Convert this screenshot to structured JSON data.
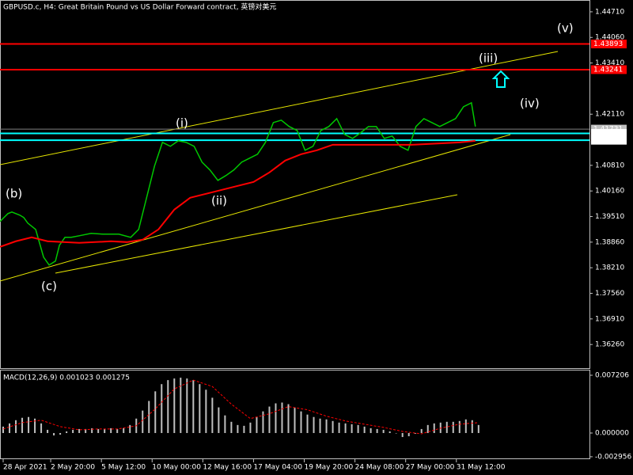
{
  "chart_data": [
    {
      "type": "line",
      "title": "GBPUSD.c, H4:  Great Britain Pound vs US Dollar Forward contract, 英镑对美元",
      "xlim": [
        0,
        186
      ],
      "ylim": [
        1.3564,
        1.4501
      ],
      "xticks": [
        {
          "value": 1,
          "label": "28 Apr 2021"
        },
        {
          "value": 16,
          "label": "2 May 20:00"
        },
        {
          "value": 32,
          "label": "5 May 12:00"
        },
        {
          "value": 48,
          "label": "10 May 00:00"
        },
        {
          "value": 64,
          "label": "12 May 16:00"
        },
        {
          "value": 80,
          "label": "17 May 04:00"
        },
        {
          "value": 96,
          "label": "19 May 20:00"
        },
        {
          "value": 112,
          "label": "24 May 08:00"
        },
        {
          "value": 128,
          "label": "27 May 00:00"
        },
        {
          "value": 144,
          "label": "31 May 12:00"
        }
      ],
      "yticks": [
        {
          "value": 1.4471,
          "label": "1.44710"
        },
        {
          "value": 1.4406,
          "label": "1.44060"
        },
        {
          "value": 1.4341,
          "label": "1.43410"
        },
        {
          "value": 1.4211,
          "label": "1.42110"
        },
        {
          "value": 1.4081,
          "label": "1.40810"
        },
        {
          "value": 1.4016,
          "label": "1.40160"
        },
        {
          "value": 1.3951,
          "label": "1.39510"
        },
        {
          "value": 1.3886,
          "label": "1.38860"
        },
        {
          "value": 1.3821,
          "label": "1.38210"
        },
        {
          "value": 1.3756,
          "label": "1.37560"
        },
        {
          "value": 1.3691,
          "label": "1.36910"
        },
        {
          "value": 1.3626,
          "label": "1.36260"
        }
      ],
      "levels": [
        {
          "value": 1.41731,
          "color": "#808080"
        },
        {
          "value": 1.43893,
          "color": "#ff0000"
        },
        {
          "value": 1.43241,
          "color": "#ff0000"
        },
        {
          "value": 1.41623,
          "color": "#00ffff"
        },
        {
          "value": 1.41448,
          "color": "#00ffff"
        }
      ],
      "series": [
        {
          "color": "#00c800",
          "x": [
            0,
            1.25,
            2.5,
            3.75,
            5,
            6.25,
            7.5,
            8.75,
            11.25,
            13.75,
            15.5,
            17.5,
            18.75,
            20.5,
            22.5,
            25,
            28.75,
            32.5,
            37.5,
            41.25,
            43.75,
            45,
            46.25,
            47.5,
            48.75,
            51.25,
            53.75,
            56.25,
            58.75,
            61.25,
            63.75,
            66.25,
            68.75,
            71.25,
            73.75,
            76.25,
            78.75,
            81.25,
            83.75,
            86.25,
            88.75,
            91.25,
            93.75,
            96.25,
            98.75,
            101.25,
            103.75,
            106.25,
            108.75,
            111.25,
            113.75,
            116.25,
            118.75,
            121.25,
            123.75,
            126.25,
            128.75,
            131.25,
            133.75,
            136.25,
            138.75,
            141.25,
            143.75,
            146.25,
            148.75,
            150
          ],
          "values": [
            1.39384,
            1.39485,
            1.39585,
            1.39625,
            1.39585,
            1.39545,
            1.39485,
            1.39344,
            1.39183,
            1.3848,
            1.38279,
            1.38379,
            1.38781,
            1.38982,
            1.38982,
            1.39022,
            1.39083,
            1.39062,
            1.39062,
            1.38982,
            1.39183,
            1.39585,
            1.39987,
            1.40389,
            1.40791,
            1.41394,
            1.41294,
            1.41434,
            1.41394,
            1.41294,
            1.40891,
            1.40691,
            1.40429,
            1.4055,
            1.40691,
            1.40891,
            1.40992,
            1.41093,
            1.41394,
            1.41897,
            1.41957,
            1.41796,
            1.41696,
            1.41193,
            1.41294,
            1.41696,
            1.41796,
            1.41997,
            1.41595,
            1.41494,
            1.41635,
            1.41796,
            1.41796,
            1.41494,
            1.41555,
            1.41294,
            1.41193,
            1.41796,
            1.41997,
            1.41897,
            1.41796,
            1.41897,
            1.41997,
            1.42299,
            1.42399,
            1.41796
          ]
        },
        {
          "color": "#ff0000",
          "x": [
            0,
            5,
            10,
            15,
            20,
            25,
            30,
            35,
            40,
            45,
            50,
            55,
            60,
            65,
            70,
            75,
            80,
            85,
            90,
            95,
            100,
            105,
            110,
            115,
            120,
            125,
            130,
            135,
            140,
            145,
            150
          ],
          "values": [
            1.38741,
            1.38882,
            1.38982,
            1.38882,
            1.38861,
            1.38841,
            1.38861,
            1.38882,
            1.38861,
            1.38922,
            1.39183,
            1.39686,
            1.39987,
            1.40088,
            1.40188,
            1.40289,
            1.40389,
            1.4063,
            1.40932,
            1.41093,
            1.41193,
            1.41334,
            1.41334,
            1.41334,
            1.41334,
            1.41334,
            1.41334,
            1.41354,
            1.41374,
            1.41394,
            1.41434
          ]
        }
      ],
      "annotations": [
        {
          "text": "(v)",
          "color": "#ffffff"
        },
        {
          "text": "(iii)",
          "color": "#ffffff"
        },
        {
          "text": "(iv)",
          "color": "#ffffff"
        },
        {
          "text": "(i)",
          "color": "#ffffff"
        },
        {
          "text": "(ii)",
          "color": "#ffffff"
        },
        {
          "text": "(b)",
          "color": "#e6d200"
        },
        {
          "text": "(c)",
          "color": "#e6d200"
        }
      ]
    },
    {
      "type": "bar",
      "title": "MACD(12,26,9) 0.001023 0.001275",
      "xlim": [
        0,
        186
      ],
      "ylim": [
        -0.00326,
        0.007798
      ],
      "yticks": [
        {
          "value": 0.007206,
          "label": "0.007206"
        },
        {
          "value": 0,
          "label": "0.000000"
        },
        {
          "value": -0.002956,
          "label": "-0.002956"
        }
      ],
      "series": [
        {
          "color": "#c0c0c0",
          "x": [
            1,
            3,
            5,
            7,
            9,
            11,
            13,
            15,
            17,
            19,
            21,
            23,
            25,
            27,
            29,
            31,
            33,
            35,
            37,
            39,
            41,
            43,
            45,
            47,
            49,
            51,
            53,
            55,
            57,
            59,
            61,
            63,
            65,
            67,
            69,
            71,
            73,
            75,
            77,
            79,
            81,
            83,
            85,
            87,
            89,
            91,
            93,
            95,
            97,
            99,
            101,
            103,
            105,
            107,
            109,
            111,
            113,
            115,
            117,
            119,
            121,
            123,
            125,
            127,
            129,
            131,
            133,
            135,
            137,
            139,
            141,
            143,
            145,
            147,
            149,
            151
          ],
          "values": [
            0.0008,
            0.0012,
            0.0016,
            0.0019,
            0.002,
            0.0018,
            0.0012,
            0.0004,
            -0.0003,
            -0.0002,
            0.0002,
            0.0004,
            0.0005,
            0.0005,
            0.0006,
            0.0005,
            0.0005,
            0.0006,
            0.0005,
            0.0006,
            0.001,
            0.0018,
            0.0028,
            0.004,
            0.0052,
            0.0061,
            0.0066,
            0.0068,
            0.0069,
            0.0068,
            0.0066,
            0.0061,
            0.0054,
            0.0044,
            0.0032,
            0.0022,
            0.0014,
            0.001,
            0.0009,
            0.0013,
            0.002,
            0.0027,
            0.0033,
            0.0037,
            0.0038,
            0.0036,
            0.0032,
            0.0027,
            0.0023,
            0.002,
            0.0018,
            0.0017,
            0.0015,
            0.0013,
            0.0012,
            0.0011,
            0.001,
            0.0008,
            0.0006,
            0.0005,
            0.0004,
            0.0002,
            0.0,
            -0.0005,
            -0.0004,
            -0.0001,
            0.0005,
            0.001,
            0.0012,
            0.0013,
            0.0014,
            0.0014,
            0.0015,
            0.0017,
            0.0016,
            0.001
          ]
        },
        {
          "color": "#ff0000",
          "dash": true,
          "x": [
            1,
            7,
            13,
            19,
            25,
            31,
            37,
            43,
            49,
            55,
            61,
            67,
            73,
            79,
            85,
            91,
            97,
            103,
            109,
            115,
            121,
            127,
            133,
            139,
            145,
            151
          ],
          "values": [
            0.0005,
            0.0013,
            0.0016,
            0.0008,
            0.0004,
            0.0005,
            0.0005,
            0.0009,
            0.003,
            0.0055,
            0.0066,
            0.0058,
            0.0036,
            0.0018,
            0.0024,
            0.0033,
            0.0029,
            0.0021,
            0.0015,
            0.0011,
            0.0007,
            0.0002,
            -0.0001,
            0.0006,
            0.0011,
            0.0013
          ]
        }
      ]
    }
  ]
}
